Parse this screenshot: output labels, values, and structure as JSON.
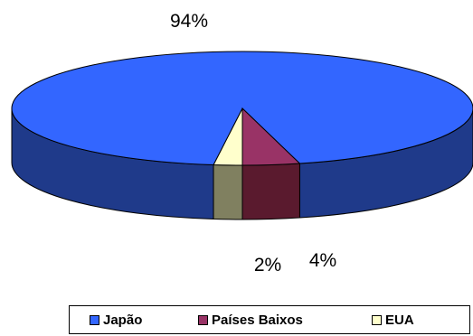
{
  "chart_data": {
    "type": "pie",
    "style": "3d",
    "categories": [
      "Japão",
      "Países Baixos",
      "EUA"
    ],
    "values": [
      94,
      4,
      2
    ],
    "data_labels": [
      "94%",
      "4%",
      "2%"
    ],
    "colors": {
      "top": [
        "#3366ff",
        "#993366",
        "#ffffcc"
      ],
      "side": [
        "#1f3a8a",
        "#5a1a2e",
        "#808060"
      ]
    },
    "legend_position": "bottom"
  }
}
